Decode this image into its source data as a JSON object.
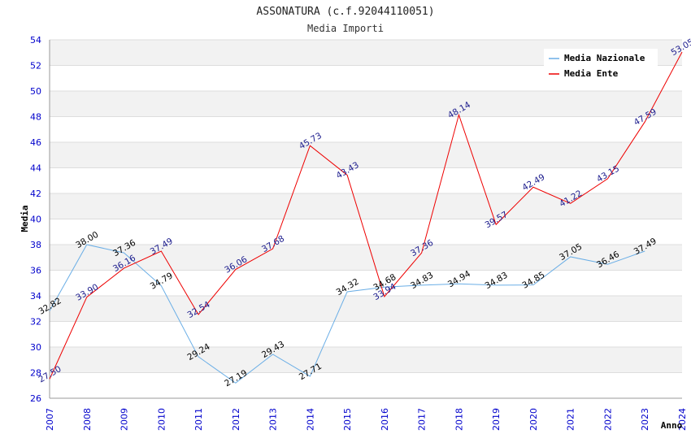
{
  "chart_data": {
    "type": "line",
    "title": "ASSONATURA (c.f.92044110051)",
    "subtitle": "Media Importi",
    "xlabel": "Anno",
    "ylabel": "Media",
    "ylim": [
      26,
      54
    ],
    "yticks": [
      26,
      28,
      30,
      32,
      34,
      36,
      38,
      40,
      42,
      44,
      46,
      48,
      50,
      52,
      54
    ],
    "categories": [
      "2007",
      "2008",
      "2009",
      "2010",
      "2011",
      "2012",
      "2013",
      "2014",
      "2015",
      "2016",
      "2017",
      "2018",
      "2019",
      "2020",
      "2021",
      "2022",
      "2023",
      "2024"
    ],
    "legend_position": "top-right",
    "series": [
      {
        "name": "Media Nazionale",
        "color": "#6aaee6",
        "label_color": "#000000",
        "values": [
          32.82,
          38.0,
          37.36,
          34.79,
          29.24,
          27.19,
          29.43,
          27.71,
          34.32,
          34.68,
          34.83,
          34.94,
          34.83,
          34.85,
          37.05,
          36.46,
          37.49,
          null
        ],
        "labels": [
          "32.82",
          "38.00",
          "37.36",
          "34.79",
          "29.24",
          "27.19",
          "29.43",
          "27.71",
          "34.32",
          "34.68",
          "34.83",
          "34.94",
          "34.83",
          "34.85",
          "37.05",
          "36.46",
          "37.49",
          ""
        ]
      },
      {
        "name": "Media Ente",
        "color": "#ee0000",
        "label_color": "#1a1a8c",
        "values": [
          27.5,
          33.9,
          36.16,
          37.49,
          32.54,
          36.06,
          37.68,
          45.73,
          43.43,
          33.94,
          37.36,
          48.14,
          39.57,
          42.49,
          41.22,
          43.15,
          47.59,
          53.05
        ],
        "labels": [
          "27.50",
          "33.90",
          "36.16",
          "37.49",
          "32.54",
          "36.06",
          "37.68",
          "45.73",
          "43.43",
          "33.94",
          "37.36",
          "48.14",
          "39.57",
          "42.49",
          "41.22",
          "43.15",
          "47.59",
          "53.05"
        ]
      }
    ],
    "colors": {
      "band": "#f2f2f2",
      "grid": "#dddddd",
      "axis": "#999999"
    }
  }
}
